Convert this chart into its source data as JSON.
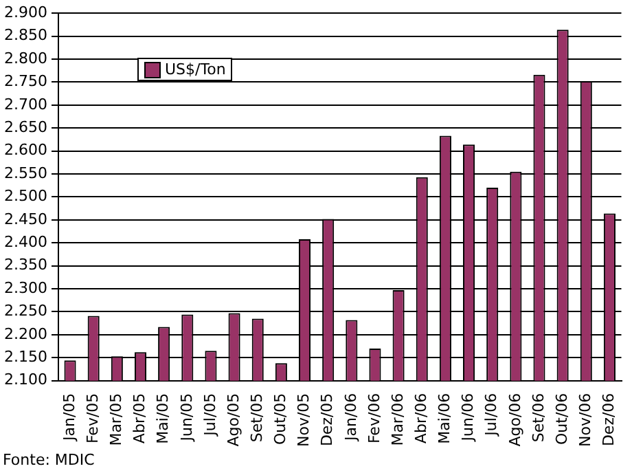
{
  "chart_data": {
    "type": "bar",
    "categories": [
      "Jan/05",
      "Fev/05",
      "Mar/05",
      "Abr/05",
      "Mai/05",
      "Jun/05",
      "Jul/05",
      "Ago/05",
      "Set/05",
      "Out/05",
      "Nov/05",
      "Dez/05",
      "Jan/06",
      "Fev/06",
      "Mar/06",
      "Abr/06",
      "Mai/06",
      "Jun/06",
      "Jul/06",
      "Ago/06",
      "Set/06",
      "Out/06",
      "Nov/06",
      "Dez/06"
    ],
    "series": [
      {
        "name": "US$/Ton",
        "color": "#993366",
        "values": [
          2144,
          2241,
          2153,
          2162,
          2217,
          2244,
          2165,
          2247,
          2235,
          2138,
          2408,
          2452,
          2232,
          2170,
          2297,
          2543,
          2633,
          2614,
          2520,
          2555,
          2766,
          2864,
          2752,
          2464
        ]
      }
    ],
    "ylim": [
      2100,
      2900
    ],
    "yticks": [
      {
        "value": 2100,
        "label": "2.100"
      },
      {
        "value": 2150,
        "label": "2.150"
      },
      {
        "value": 2200,
        "label": "2.200"
      },
      {
        "value": 2250,
        "label": "2.250"
      },
      {
        "value": 2300,
        "label": "2.300"
      },
      {
        "value": 2350,
        "label": "2.350"
      },
      {
        "value": 2400,
        "label": "2.400"
      },
      {
        "value": 2450,
        "label": "2.450"
      },
      {
        "value": 2500,
        "label": "2.500"
      },
      {
        "value": 2550,
        "label": "2.550"
      },
      {
        "value": 2600,
        "label": "2.600"
      },
      {
        "value": 2650,
        "label": "2.650"
      },
      {
        "value": 2700,
        "label": "2.700"
      },
      {
        "value": 2750,
        "label": "2.750"
      },
      {
        "value": 2800,
        "label": "2.800"
      },
      {
        "value": 2850,
        "label": "2.850"
      },
      {
        "value": 2900,
        "label": "2.900"
      }
    ],
    "grid": "y",
    "legend": "top left",
    "annotations": [
      "Fonte: MDIC"
    ]
  }
}
